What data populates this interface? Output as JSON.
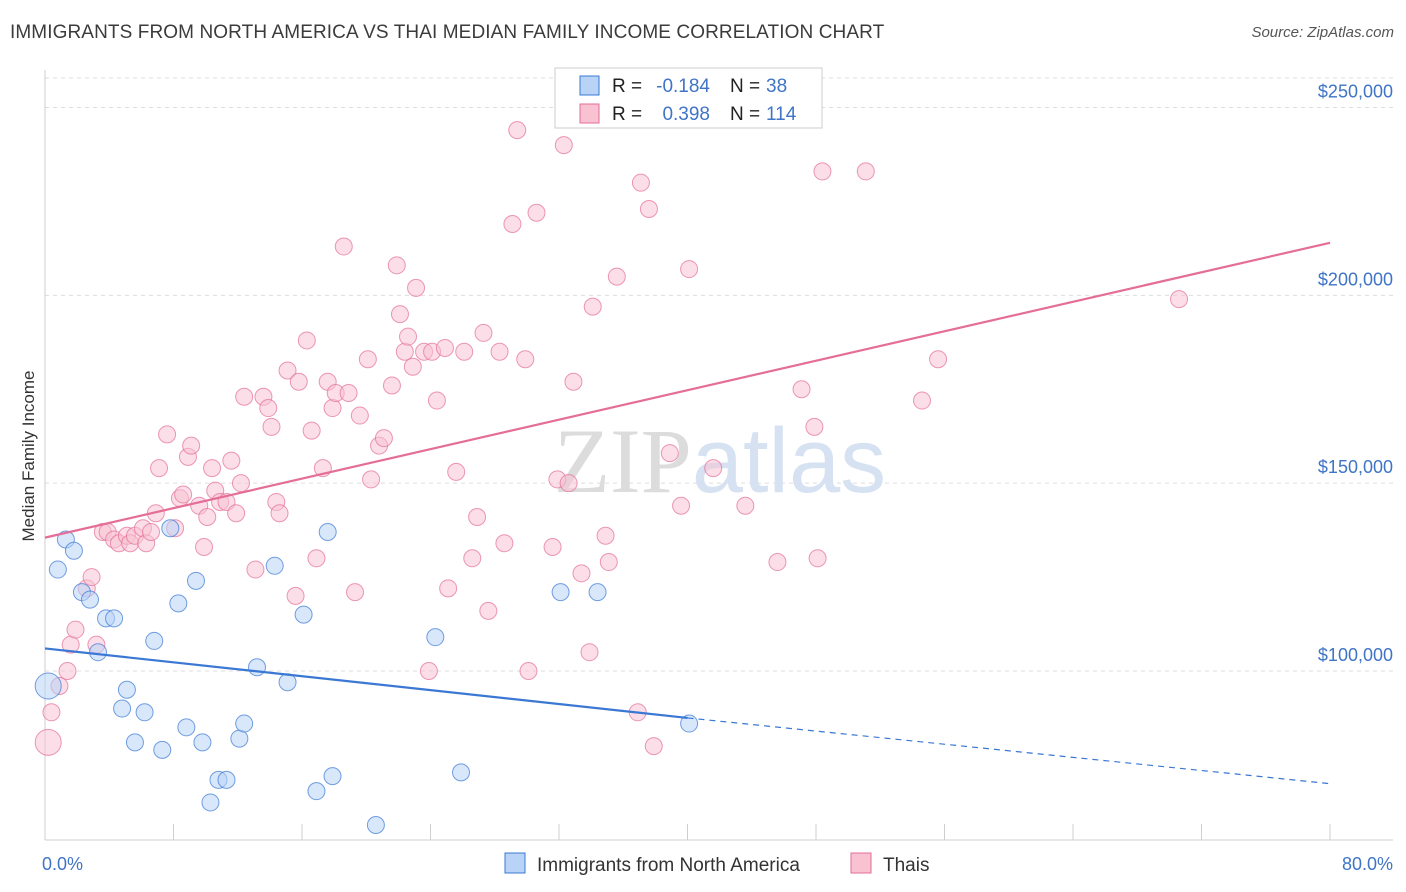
{
  "title": "IMMIGRANTS FROM NORTH AMERICA VS THAI MEDIAN FAMILY INCOME CORRELATION CHART",
  "source": "Source: ZipAtlas.com",
  "watermark": "ZIPatlas",
  "colors": {
    "blue": "#3a78d4",
    "blue_fill": "#b8d3f5",
    "pink": "#e46e98",
    "pink_fill": "#f8c2d3",
    "tick_text": "#3f74c6",
    "grid": "#dddddd"
  },
  "legend_top": {
    "rows": [
      {
        "r_label": "R =",
        "r_value": "-0.184",
        "n_label": "N =",
        "n_value": "38",
        "color": "blue"
      },
      {
        "r_label": "R =",
        "r_value": "0.398",
        "n_label": "N =",
        "n_value": "114",
        "color": "pink"
      }
    ]
  },
  "chart_data": {
    "type": "scatter",
    "ylabel": "Median Family Income",
    "xlim": [
      0,
      80
    ],
    "ylim": [
      55000,
      260000
    ],
    "y_ticks": [
      100000,
      150000,
      200000,
      250000
    ],
    "y_tick_labels": [
      "$100,000",
      "$150,000",
      "$200,000",
      "$250,000"
    ],
    "x_tick_labels": {
      "left": "0.0%",
      "right": "80.0%"
    },
    "grid": "horizontal dashed",
    "legend_position": "bottom-center",
    "series": [
      {
        "name": "Immigrants from North America",
        "color": "blue",
        "trend": {
          "x0": 0,
          "y0": 106000,
          "x1": 40,
          "y1": 87500,
          "dash_to_x": 80,
          "dash_to_y": 70000
        },
        "points": [
          [
            0.2,
            96000
          ],
          [
            0.8,
            127000
          ],
          [
            1.3,
            135000
          ],
          [
            1.8,
            132000
          ],
          [
            2.3,
            121000
          ],
          [
            2.8,
            119000
          ],
          [
            3.3,
            105000
          ],
          [
            3.8,
            114000
          ],
          [
            4.3,
            114000
          ],
          [
            4.8,
            90000
          ],
          [
            5.1,
            95000
          ],
          [
            5.6,
            81000
          ],
          [
            6.2,
            89000
          ],
          [
            6.8,
            108000
          ],
          [
            7.3,
            79000
          ],
          [
            7.8,
            138000
          ],
          [
            8.3,
            118000
          ],
          [
            8.8,
            85000
          ],
          [
            9.4,
            124000
          ],
          [
            9.8,
            81000
          ],
          [
            10.3,
            65000
          ],
          [
            10.8,
            71000
          ],
          [
            11.3,
            71000
          ],
          [
            12.1,
            82000
          ],
          [
            12.4,
            86000
          ],
          [
            13.2,
            101000
          ],
          [
            14.3,
            128000
          ],
          [
            15.1,
            97000
          ],
          [
            16.1,
            115000
          ],
          [
            16.9,
            68000
          ],
          [
            17.6,
            137000
          ],
          [
            17.9,
            72000
          ],
          [
            20.6,
            59000
          ],
          [
            24.3,
            109000
          ],
          [
            25.9,
            73000
          ],
          [
            32.1,
            121000
          ],
          [
            34.4,
            121000
          ],
          [
            40.1,
            86000
          ]
        ]
      },
      {
        "name": "Thais",
        "color": "pink",
        "trend": {
          "x0": 0,
          "y0": 135500,
          "x1": 80,
          "y1": 214000
        },
        "points": [
          [
            0.2,
            81000
          ],
          [
            0.4,
            89000
          ],
          [
            0.9,
            96000
          ],
          [
            1.4,
            100000
          ],
          [
            1.6,
            107000
          ],
          [
            1.9,
            111000
          ],
          [
            2.6,
            122000
          ],
          [
            2.9,
            125000
          ],
          [
            3.2,
            107000
          ],
          [
            3.6,
            137000
          ],
          [
            3.9,
            137000
          ],
          [
            4.3,
            135000
          ],
          [
            4.6,
            134000
          ],
          [
            5.1,
            136000
          ],
          [
            5.3,
            134000
          ],
          [
            5.6,
            136000
          ],
          [
            6.1,
            138000
          ],
          [
            6.3,
            134000
          ],
          [
            6.6,
            137000
          ],
          [
            6.9,
            142000
          ],
          [
            7.1,
            154000
          ],
          [
            7.6,
            163000
          ],
          [
            8.1,
            138000
          ],
          [
            8.4,
            146000
          ],
          [
            8.6,
            147000
          ],
          [
            8.9,
            157000
          ],
          [
            9.1,
            160000
          ],
          [
            9.6,
            144000
          ],
          [
            9.9,
            133000
          ],
          [
            10.1,
            141000
          ],
          [
            10.4,
            154000
          ],
          [
            10.6,
            148000
          ],
          [
            10.9,
            145000
          ],
          [
            11.3,
            145000
          ],
          [
            11.6,
            156000
          ],
          [
            11.9,
            142000
          ],
          [
            12.2,
            150000
          ],
          [
            12.4,
            173000
          ],
          [
            13.1,
            127000
          ],
          [
            13.6,
            173000
          ],
          [
            13.9,
            170000
          ],
          [
            14.1,
            165000
          ],
          [
            14.4,
            145000
          ],
          [
            14.6,
            142000
          ],
          [
            15.1,
            180000
          ],
          [
            15.6,
            120000
          ],
          [
            15.8,
            177000
          ],
          [
            16.3,
            188000
          ],
          [
            16.6,
            164000
          ],
          [
            16.9,
            130000
          ],
          [
            17.3,
            154000
          ],
          [
            17.6,
            177000
          ],
          [
            17.9,
            170000
          ],
          [
            18.1,
            174000
          ],
          [
            18.6,
            213000
          ],
          [
            18.9,
            174000
          ],
          [
            19.3,
            121000
          ],
          [
            19.6,
            168000
          ],
          [
            20.1,
            183000
          ],
          [
            20.3,
            151000
          ],
          [
            20.8,
            160000
          ],
          [
            21.1,
            162000
          ],
          [
            21.6,
            176000
          ],
          [
            21.9,
            208000
          ],
          [
            22.1,
            195000
          ],
          [
            22.4,
            185000
          ],
          [
            22.6,
            189000
          ],
          [
            22.9,
            181000
          ],
          [
            23.1,
            202000
          ],
          [
            23.6,
            185000
          ],
          [
            23.9,
            100000
          ],
          [
            24.1,
            185000
          ],
          [
            24.4,
            172000
          ],
          [
            24.9,
            186000
          ],
          [
            25.1,
            122000
          ],
          [
            25.6,
            153000
          ],
          [
            26.1,
            185000
          ],
          [
            26.6,
            130000
          ],
          [
            26.9,
            141000
          ],
          [
            27.3,
            190000
          ],
          [
            27.6,
            116000
          ],
          [
            28.3,
            185000
          ],
          [
            28.6,
            134000
          ],
          [
            29.1,
            219000
          ],
          [
            29.4,
            244000
          ],
          [
            29.9,
            183000
          ],
          [
            30.1,
            100000
          ],
          [
            30.6,
            222000
          ],
          [
            31.6,
            133000
          ],
          [
            31.9,
            151000
          ],
          [
            32.3,
            240000
          ],
          [
            32.6,
            150000
          ],
          [
            32.9,
            177000
          ],
          [
            33.4,
            126000
          ],
          [
            33.9,
            105000
          ],
          [
            34.1,
            197000
          ],
          [
            34.9,
            136000
          ],
          [
            35.1,
            129000
          ],
          [
            35.6,
            205000
          ],
          [
            36.9,
            89000
          ],
          [
            37.1,
            230000
          ],
          [
            37.6,
            223000
          ],
          [
            37.9,
            80000
          ],
          [
            38.9,
            158000
          ],
          [
            39.6,
            144000
          ],
          [
            40.1,
            207000
          ],
          [
            41.6,
            154000
          ],
          [
            43.6,
            144000
          ],
          [
            45.6,
            129000
          ],
          [
            47.1,
            175000
          ],
          [
            47.9,
            165000
          ],
          [
            48.1,
            130000
          ],
          [
            48.4,
            233000
          ],
          [
            51.1,
            233000
          ],
          [
            54.6,
            172000
          ],
          [
            55.6,
            183000
          ],
          [
            70.6,
            199000
          ]
        ]
      }
    ]
  },
  "legend_bottom": {
    "items": [
      {
        "label": "Immigrants from North America",
        "color": "blue"
      },
      {
        "label": "Thais",
        "color": "pink"
      }
    ]
  }
}
